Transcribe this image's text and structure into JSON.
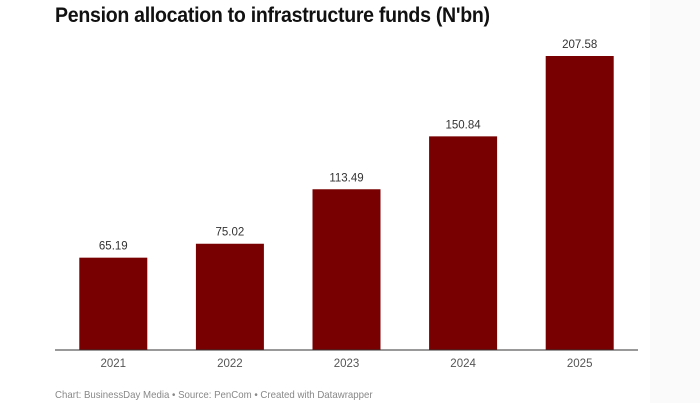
{
  "chart_data": {
    "type": "bar",
    "title": "Pension allocation to infrastructure funds (N'bn)",
    "categories": [
      "2021",
      "2022",
      "2023",
      "2024",
      "2025"
    ],
    "values": [
      65.19,
      75.02,
      113.49,
      150.84,
      207.58
    ],
    "value_labels": [
      "65.19",
      "75.02",
      "113.49",
      "150.84",
      "207.58"
    ],
    "xlabel": "",
    "ylabel": "",
    "ylim": [
      0,
      207.58
    ],
    "grid": false,
    "bar_color": "#780000",
    "footer": "Chart: BusinessDay Media • Source: PenCom • Created with Datawrapper"
  }
}
